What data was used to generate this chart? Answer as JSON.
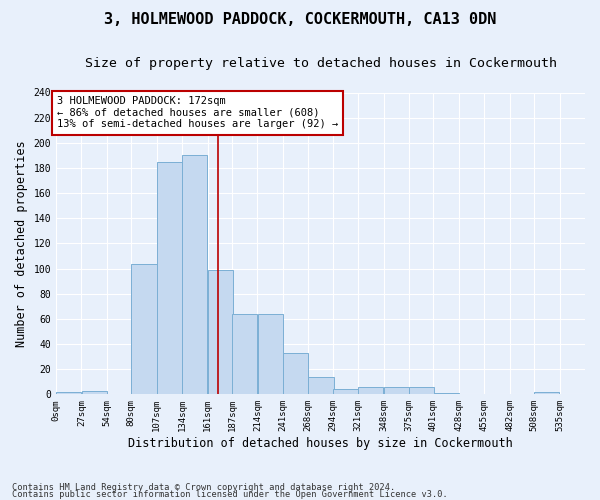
{
  "title": "3, HOLMEWOOD PADDOCK, COCKERMOUTH, CA13 0DN",
  "subtitle": "Size of property relative to detached houses in Cockermouth",
  "xlabel": "Distribution of detached houses by size in Cockermouth",
  "ylabel": "Number of detached properties",
  "footnote1": "Contains HM Land Registry data © Crown copyright and database right 2024.",
  "footnote2": "Contains public sector information licensed under the Open Government Licence v3.0.",
  "annotation_line1": "3 HOLMEWOOD PADDOCK: 172sqm",
  "annotation_line2": "← 86% of detached houses are smaller (608)",
  "annotation_line3": "13% of semi-detached houses are larger (92) →",
  "bar_left_edges": [
    0,
    27,
    54,
    80,
    107,
    134,
    161,
    187,
    214,
    241,
    268,
    294,
    321,
    348,
    375,
    401,
    428,
    455,
    482,
    508
  ],
  "bar_widths": [
    27,
    27,
    26,
    27,
    27,
    27,
    26,
    27,
    27,
    27,
    26,
    27,
    27,
    27,
    26,
    26,
    27,
    27,
    26,
    27
  ],
  "bar_heights": [
    2,
    3,
    0,
    104,
    185,
    190,
    99,
    64,
    64,
    33,
    14,
    4,
    6,
    6,
    6,
    1,
    0,
    0,
    0,
    2
  ],
  "tick_labels": [
    "0sqm",
    "27sqm",
    "54sqm",
    "80sqm",
    "107sqm",
    "134sqm",
    "161sqm",
    "187sqm",
    "214sqm",
    "241sqm",
    "268sqm",
    "294sqm",
    "321sqm",
    "348sqm",
    "375sqm",
    "401sqm",
    "428sqm",
    "455sqm",
    "482sqm",
    "508sqm",
    "535sqm"
  ],
  "vline_x": 172,
  "ylim": [
    0,
    240
  ],
  "yticks": [
    0,
    20,
    40,
    60,
    80,
    100,
    120,
    140,
    160,
    180,
    200,
    220,
    240
  ],
  "bar_color": "#c5d9f0",
  "bar_edge_color": "#7bafd4",
  "vline_color": "#bb0000",
  "grid_color": "#dde8f5",
  "bg_color": "#e8f0fb",
  "title_fontsize": 11,
  "subtitle_fontsize": 9.5,
  "ylabel_fontsize": 8.5,
  "xlabel_fontsize": 8.5,
  "tick_fontsize": 6.5,
  "annotation_fontsize": 7.5,
  "footnote_fontsize": 6.2
}
